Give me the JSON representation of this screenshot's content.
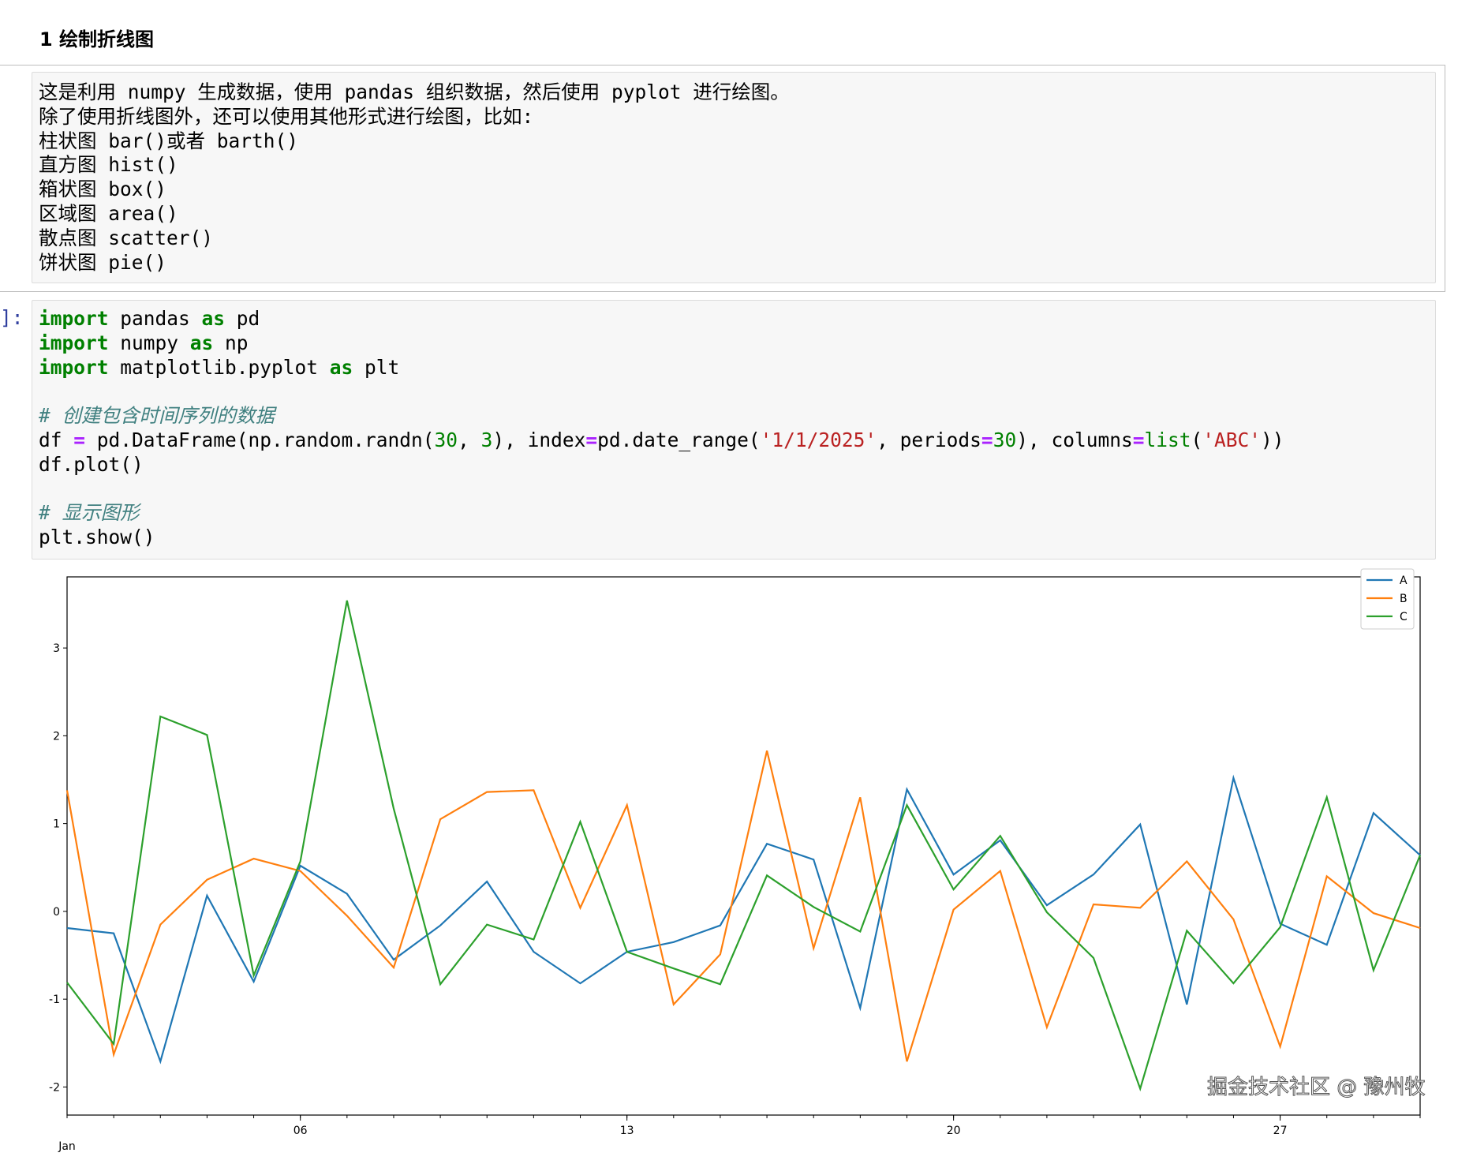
{
  "heading": "1 绘制折线图",
  "markdown_lines": [
    "这是利用 numpy 生成数据，使用 pandas 组织数据，然后使用 pyplot 进行绘图。",
    "除了使用折线图外，还可以使用其他形式进行绘图，比如:",
    "柱状图 bar()或者 barth()",
    "直方图 hist()",
    "箱状图 box()",
    "区域图 area()",
    "散点图 scatter()",
    "饼状图 pie()"
  ],
  "code_prompt": "]:",
  "code_lines": [
    [
      [
        "kw",
        "import"
      ],
      [
        "",
        "  pandas "
      ],
      [
        "kw",
        "as"
      ],
      [
        "",
        " pd"
      ]
    ],
    [
      [
        "kw",
        "import"
      ],
      [
        "",
        "",
        " "
      ],
      [
        "",
        " numpy "
      ],
      [
        "kw",
        "as"
      ],
      [
        "",
        " np"
      ]
    ],
    [
      [
        "kw",
        "import"
      ],
      [
        "",
        " matplotlib.pyplot "
      ],
      [
        "kw",
        "as"
      ],
      [
        "",
        " plt"
      ]
    ],
    [],
    [
      [
        "cm",
        "# 创建包含时间序列的数据"
      ]
    ],
    [
      [
        "",
        "df "
      ],
      [
        "op",
        "="
      ],
      [
        "",
        " pd.DataFrame(np.random.randn("
      ],
      [
        "num",
        "30"
      ],
      [
        "",
        ", "
      ],
      [
        "num",
        "3"
      ],
      [
        "",
        "), index"
      ],
      [
        "op",
        "="
      ],
      [
        "",
        "pd.date_range("
      ],
      [
        "str",
        "'1/1/2025'"
      ],
      [
        "",
        ", periods"
      ],
      [
        "op",
        "="
      ],
      [
        "num",
        "30"
      ],
      [
        "",
        "), columns"
      ],
      [
        "op",
        "="
      ],
      [
        "bi",
        "list"
      ],
      [
        "",
        "("
      ],
      [
        "str",
        "'ABC'"
      ],
      [
        "",
        "))"
      ]
    ],
    [
      [
        "",
        "df.plot()"
      ]
    ],
    [],
    [
      [
        "cm",
        "# 显示图形"
      ]
    ],
    [
      [
        "",
        "plt.show()"
      ]
    ]
  ],
  "chart_data": {
    "type": "line",
    "x": [
      "2025-01-01",
      "2025-01-02",
      "2025-01-03",
      "2025-01-04",
      "2025-01-05",
      "2025-01-06",
      "2025-01-07",
      "2025-01-08",
      "2025-01-09",
      "2025-01-10",
      "2025-01-11",
      "2025-01-12",
      "2025-01-13",
      "2025-01-14",
      "2025-01-15",
      "2025-01-16",
      "2025-01-17",
      "2025-01-18",
      "2025-01-19",
      "2025-01-20",
      "2025-01-21",
      "2025-01-22",
      "2025-01-23",
      "2025-01-24",
      "2025-01-25",
      "2025-01-26",
      "2025-01-27",
      "2025-01-28",
      "2025-01-29",
      "2025-01-30"
    ],
    "series": [
      {
        "name": "A",
        "color": "#1f77b4",
        "values": [
          -0.19,
          -0.25,
          -1.71,
          0.18,
          -0.8,
          0.52,
          0.2,
          -0.55,
          -0.16,
          0.34,
          -0.46,
          -0.82,
          -0.46,
          -0.35,
          -0.16,
          0.77,
          0.59,
          -1.1,
          1.39,
          0.42,
          0.81,
          0.07,
          0.42,
          0.99,
          -1.06,
          1.52,
          -0.14,
          -0.38,
          1.12,
          0.64
        ]
      },
      {
        "name": "B",
        "color": "#ff7f0e",
        "values": [
          1.38,
          -1.63,
          -0.15,
          0.36,
          0.6,
          0.46,
          -0.05,
          -0.64,
          1.05,
          1.36,
          1.38,
          0.04,
          1.21,
          -1.06,
          -0.49,
          1.83,
          -0.42,
          1.3,
          -1.71,
          0.02,
          0.46,
          -1.32,
          0.08,
          0.04,
          0.57,
          -0.09,
          -1.54,
          0.4,
          -0.02,
          -0.19
        ]
      },
      {
        "name": "C",
        "color": "#2ca02c",
        "values": [
          -0.81,
          -1.51,
          2.22,
          2.01,
          -0.73,
          0.57,
          3.54,
          1.17,
          -0.83,
          -0.15,
          -0.32,
          1.02,
          -0.46,
          -0.65,
          -0.83,
          0.41,
          0.05,
          -0.23,
          1.21,
          0.25,
          0.86,
          -0.01,
          -0.53,
          -2.02,
          -0.22,
          -0.82,
          -0.18,
          1.3,
          -0.67,
          0.64
        ]
      }
    ],
    "ylim": [
      -2.32,
      3.81
    ],
    "yticks": [
      "-2",
      "-1",
      "0",
      "1",
      "2",
      "3"
    ],
    "xticks": [
      {
        "day": 6,
        "label": "06"
      },
      {
        "day": 13,
        "label": "13"
      },
      {
        "day": 20,
        "label": "20"
      },
      {
        "day": 27,
        "label": "27"
      }
    ],
    "xlabel_month": "Jan",
    "legend": "top-right",
    "grid": false
  },
  "watermark": "掘金技术社区 @ 豫州牧"
}
